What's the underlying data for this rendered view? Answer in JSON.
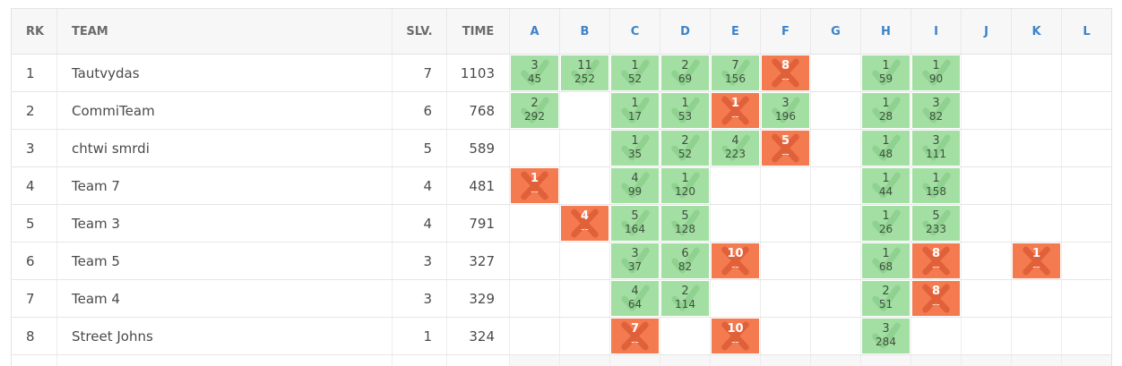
{
  "header": {
    "rank": "RK",
    "team": "TEAM",
    "solved": "SLV.",
    "time": "TIME",
    "problems": [
      "A",
      "B",
      "C",
      "D",
      "E",
      "F",
      "G",
      "H",
      "I",
      "J",
      "K",
      "L"
    ]
  },
  "colors": {
    "solved": "#a3dfa3",
    "failed": "#f47a4f",
    "problem_header": "#3d83c6",
    "header_bg": "#f7f7f7"
  },
  "icons": {
    "solved": "check-icon",
    "failed": "cross-icon"
  },
  "rows": [
    {
      "rank": "1",
      "team": "Tautvydas",
      "solved": "7",
      "time": "1103",
      "cells": [
        {
          "status": "solved",
          "attempts": "3",
          "time": "45"
        },
        {
          "status": "solved",
          "attempts": "11",
          "time": "252"
        },
        {
          "status": "solved",
          "attempts": "1",
          "time": "52"
        },
        {
          "status": "solved",
          "attempts": "2",
          "time": "69"
        },
        {
          "status": "solved",
          "attempts": "7",
          "time": "156"
        },
        {
          "status": "failed",
          "attempts": "8",
          "time": "--"
        },
        null,
        {
          "status": "solved",
          "attempts": "1",
          "time": "59"
        },
        {
          "status": "solved",
          "attempts": "1",
          "time": "90"
        },
        null,
        null,
        null
      ]
    },
    {
      "rank": "2",
      "team": "CommiTeam",
      "solved": "6",
      "time": "768",
      "cells": [
        {
          "status": "solved",
          "attempts": "2",
          "time": "292"
        },
        null,
        {
          "status": "solved",
          "attempts": "1",
          "time": "17"
        },
        {
          "status": "solved",
          "attempts": "1",
          "time": "53"
        },
        {
          "status": "failed",
          "attempts": "1",
          "time": "--"
        },
        {
          "status": "solved",
          "attempts": "3",
          "time": "196"
        },
        null,
        {
          "status": "solved",
          "attempts": "1",
          "time": "28"
        },
        {
          "status": "solved",
          "attempts": "3",
          "time": "82"
        },
        null,
        null,
        null
      ]
    },
    {
      "rank": "3",
      "team": "chtwi smrdi",
      "solved": "5",
      "time": "589",
      "cells": [
        null,
        null,
        {
          "status": "solved",
          "attempts": "1",
          "time": "35"
        },
        {
          "status": "solved",
          "attempts": "2",
          "time": "52"
        },
        {
          "status": "solved",
          "attempts": "4",
          "time": "223"
        },
        {
          "status": "failed",
          "attempts": "5",
          "time": "--"
        },
        null,
        {
          "status": "solved",
          "attempts": "1",
          "time": "48"
        },
        {
          "status": "solved",
          "attempts": "3",
          "time": "111"
        },
        null,
        null,
        null
      ]
    },
    {
      "rank": "4",
      "team": "Team 7",
      "solved": "4",
      "time": "481",
      "cells": [
        {
          "status": "failed",
          "attempts": "1",
          "time": "--"
        },
        null,
        {
          "status": "solved",
          "attempts": "4",
          "time": "99"
        },
        {
          "status": "solved",
          "attempts": "1",
          "time": "120"
        },
        null,
        null,
        null,
        {
          "status": "solved",
          "attempts": "1",
          "time": "44"
        },
        {
          "status": "solved",
          "attempts": "1",
          "time": "158"
        },
        null,
        null,
        null
      ]
    },
    {
      "rank": "5",
      "team": "Team 3",
      "solved": "4",
      "time": "791",
      "cells": [
        null,
        {
          "status": "failed",
          "attempts": "4",
          "time": "--"
        },
        {
          "status": "solved",
          "attempts": "5",
          "time": "164"
        },
        {
          "status": "solved",
          "attempts": "5",
          "time": "128"
        },
        null,
        null,
        null,
        {
          "status": "solved",
          "attempts": "1",
          "time": "26"
        },
        {
          "status": "solved",
          "attempts": "5",
          "time": "233"
        },
        null,
        null,
        null
      ]
    },
    {
      "rank": "6",
      "team": "Team 5",
      "solved": "3",
      "time": "327",
      "cells": [
        null,
        null,
        {
          "status": "solved",
          "attempts": "3",
          "time": "37"
        },
        {
          "status": "solved",
          "attempts": "6",
          "time": "82"
        },
        {
          "status": "failed",
          "attempts": "10",
          "time": "--"
        },
        null,
        null,
        {
          "status": "solved",
          "attempts": "1",
          "time": "68"
        },
        {
          "status": "failed",
          "attempts": "8",
          "time": "--"
        },
        null,
        {
          "status": "failed",
          "attempts": "1",
          "time": "--"
        },
        null
      ]
    },
    {
      "rank": "7",
      "team": "Team 4",
      "solved": "3",
      "time": "329",
      "cells": [
        null,
        null,
        {
          "status": "solved",
          "attempts": "4",
          "time": "64"
        },
        {
          "status": "solved",
          "attempts": "2",
          "time": "114"
        },
        null,
        null,
        null,
        {
          "status": "solved",
          "attempts": "2",
          "time": "51"
        },
        {
          "status": "failed",
          "attempts": "8",
          "time": "--"
        },
        null,
        null,
        null
      ]
    },
    {
      "rank": "8",
      "team": "Street Johns",
      "solved": "1",
      "time": "324",
      "cells": [
        null,
        null,
        {
          "status": "failed",
          "attempts": "7",
          "time": "--"
        },
        null,
        {
          "status": "failed",
          "attempts": "10",
          "time": "--"
        },
        null,
        null,
        {
          "status": "solved",
          "attempts": "3",
          "time": "284"
        },
        null,
        null,
        null,
        null
      ]
    }
  ]
}
